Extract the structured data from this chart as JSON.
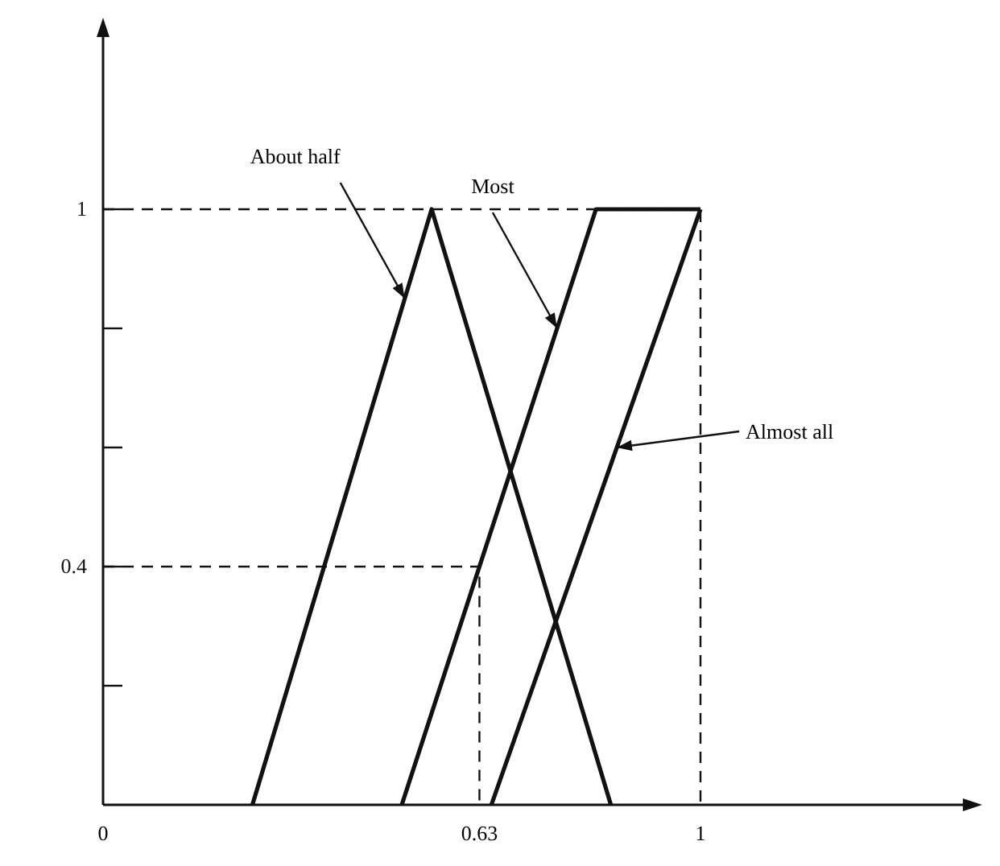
{
  "chart_data": {
    "type": "line",
    "xlim": [
      0,
      1.45
    ],
    "ylim": [
      0,
      1.3
    ],
    "xticks": [
      0,
      0.63,
      1
    ],
    "yticks": [
      {
        "value": 0.2,
        "label": null
      },
      0.4,
      {
        "value": 0.6,
        "label": null
      },
      {
        "value": 0.8,
        "label": null
      },
      1
    ],
    "line_style": "solid",
    "marker": "none",
    "grid": false,
    "series": [
      {
        "color": "#111111",
        "x": [
          0.25,
          0.55,
          0.85
        ],
        "values": [
          0,
          1,
          0
        ]
      },
      {
        "color": "#111111",
        "x": [
          0.5,
          0.825,
          1
        ],
        "values": [
          0,
          1,
          1
        ]
      },
      {
        "color": "#111111",
        "x": [
          0.65,
          1
        ],
        "values": [
          0,
          1
        ]
      },
      {
        "color": "#111111",
        "x": [
          0,
          1,
          1
        ],
        "values": [
          1,
          1,
          0
        ],
        "line_style": "dashed"
      },
      {
        "color": "#111111",
        "x": [
          0,
          0.63,
          0.63
        ],
        "values": [
          0.4,
          0.4,
          0
        ],
        "line_style": "dashed"
      }
    ],
    "annotations": [
      {
        "text": "About half",
        "x": 0.505,
        "y": 0.85
      },
      {
        "text": "Most",
        "x": 0.76,
        "y": 0.8
      },
      {
        "text": "Almost all",
        "x": 0.86,
        "y": 0.6
      }
    ]
  }
}
